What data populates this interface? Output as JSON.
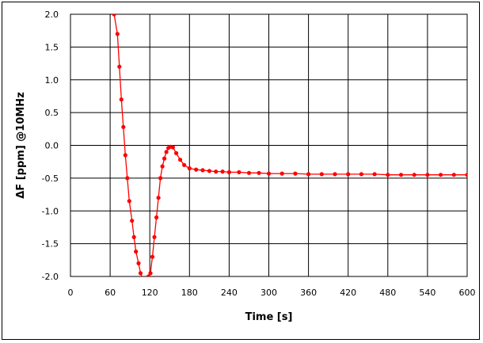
{
  "chart_data": {
    "type": "line",
    "title": "",
    "xlabel": "Time [s]",
    "ylabel": "ΔF [ppm] @10MHz",
    "xlim": [
      0,
      600
    ],
    "ylim": [
      -2.0,
      2.0
    ],
    "xticks": [
      0,
      60,
      120,
      180,
      240,
      300,
      360,
      420,
      480,
      540,
      600
    ],
    "yticks": [
      2.0,
      1.5,
      1.0,
      0.5,
      0.0,
      -0.5,
      -1.0,
      -1.5,
      -2.0
    ],
    "xtick_labels": [
      "0",
      "60",
      "120",
      "180",
      "240",
      "300",
      "360",
      "420",
      "480",
      "540",
      "600"
    ],
    "ytick_labels": [
      "2.0",
      "1.5",
      "1.0",
      "0.5",
      "0.0",
      "-0.5",
      "-1.0",
      "-1.5",
      "-2.0"
    ],
    "grid": true,
    "legend": "none",
    "series": [
      {
        "color": "#ff0000",
        "marker": "circle",
        "x": [
          66,
          71,
          74,
          77,
          80,
          83,
          86,
          89,
          93,
          96,
          99,
          103,
          106,
          110,
          114,
          118,
          121,
          124,
          127,
          130,
          133,
          136,
          139,
          142,
          145,
          148,
          151,
          155,
          160,
          166,
          172,
          180,
          190,
          200,
          210,
          220,
          230,
          240,
          255,
          270,
          285,
          300,
          320,
          340,
          360,
          380,
          400,
          420,
          440,
          460,
          480,
          500,
          520,
          540,
          560,
          580,
          600
        ],
        "y": [
          2.0,
          1.7,
          1.2,
          0.7,
          0.28,
          -0.15,
          -0.5,
          -0.85,
          -1.15,
          -1.4,
          -1.62,
          -1.8,
          -1.95,
          -2.05,
          -2.1,
          -2.0,
          -1.95,
          -1.7,
          -1.4,
          -1.1,
          -0.8,
          -0.5,
          -0.32,
          -0.2,
          -0.1,
          -0.04,
          -0.02,
          -0.03,
          -0.12,
          -0.22,
          -0.3,
          -0.35,
          -0.37,
          -0.38,
          -0.39,
          -0.4,
          -0.4,
          -0.41,
          -0.41,
          -0.42,
          -0.42,
          -0.43,
          -0.43,
          -0.43,
          -0.44,
          -0.44,
          -0.44,
          -0.44,
          -0.44,
          -0.44,
          -0.45,
          -0.45,
          -0.45,
          -0.45,
          -0.45,
          -0.45,
          -0.45
        ]
      }
    ]
  }
}
